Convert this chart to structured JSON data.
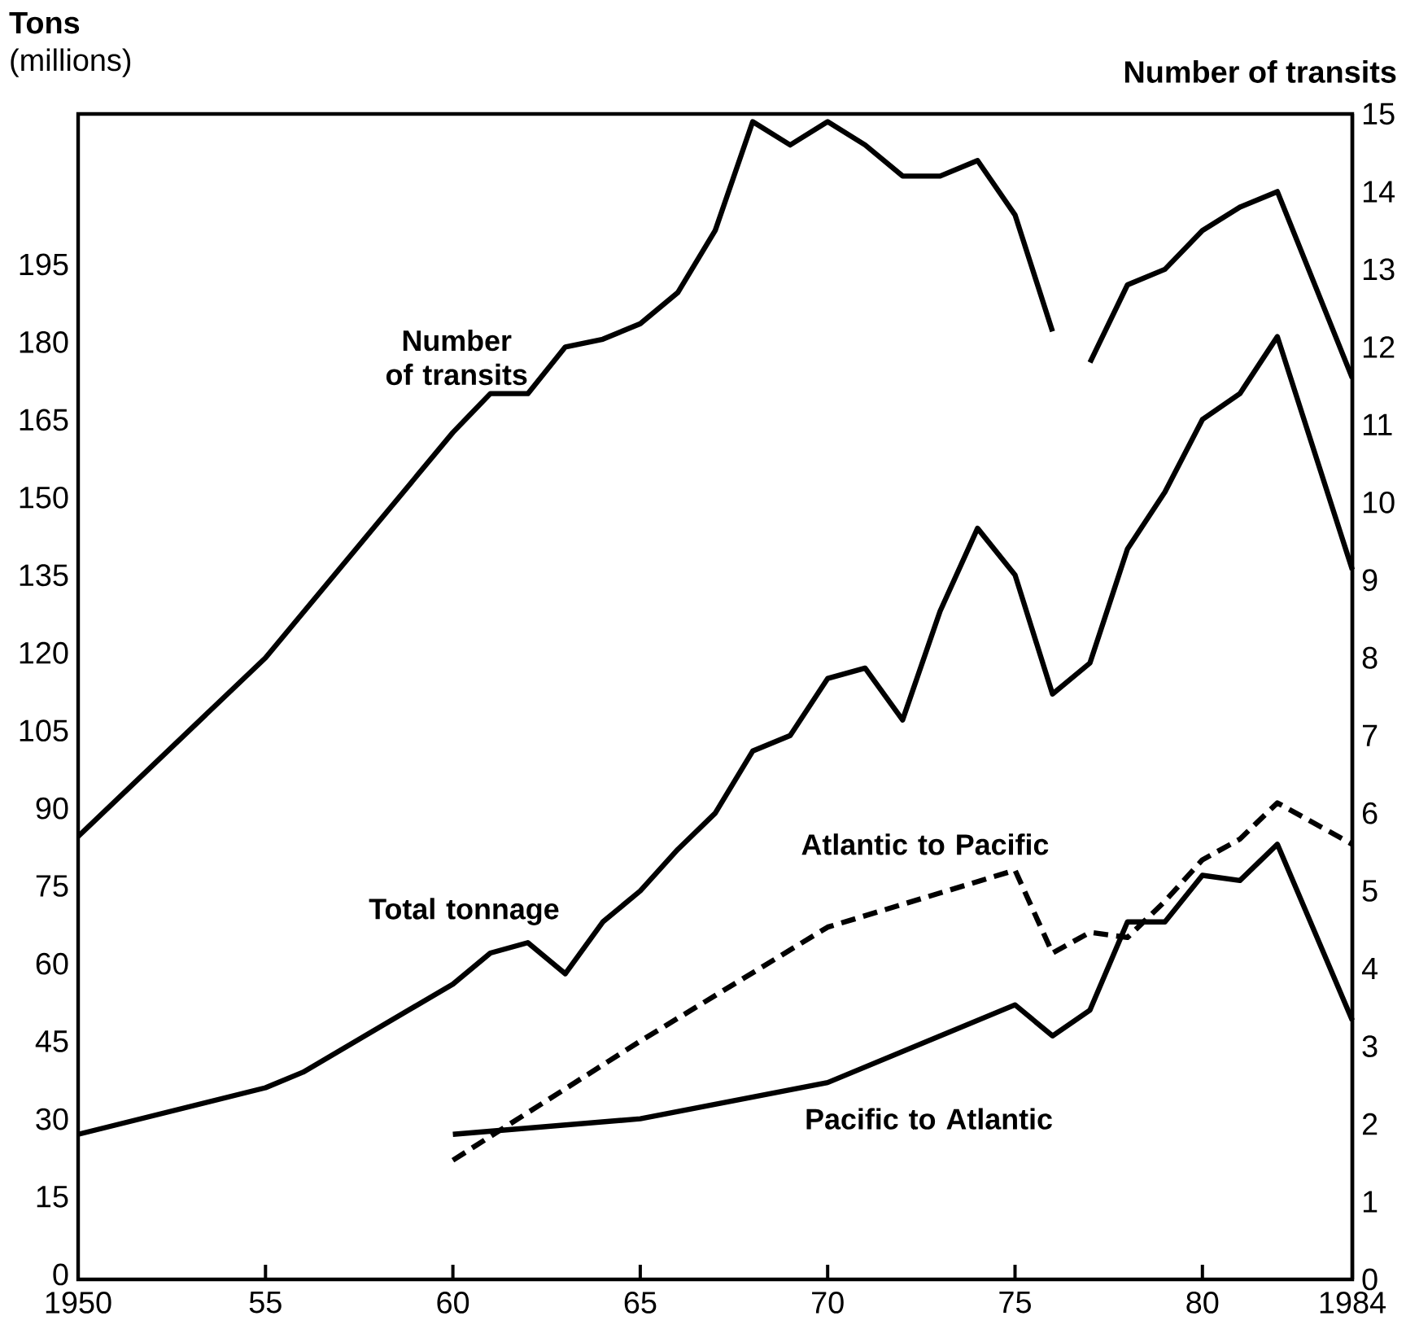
{
  "chart_data": {
    "type": "line",
    "ylabel": "**Tons** (millions)",
    "y2label": "Number of transits",
    "xlim": [
      1950,
      1984
    ],
    "xticks": [
      1950,
      {
        "value": 1955,
        "label": "55"
      },
      {
        "value": 1960,
        "label": "60"
      },
      {
        "value": 1965,
        "label": "65"
      },
      {
        "value": 1970,
        "label": "70"
      },
      {
        "value": 1975,
        "label": "75"
      },
      {
        "value": 1980,
        "label": "80"
      },
      1984
    ],
    "ylim": [
      0,
      225
    ],
    "yticks": [
      0,
      15,
      30,
      45,
      60,
      75,
      90,
      105,
      120,
      135,
      150,
      165,
      180,
      195
    ],
    "y2lim": [
      0,
      15
    ],
    "y2ticks": [
      0,
      1,
      2,
      3,
      4,
      5,
      6,
      7,
      8,
      9,
      10,
      11,
      12,
      13,
      14,
      15
    ],
    "legend": false,
    "grid": false,
    "marker": "none",
    "line_style": "solid",
    "series": [
      {
        "name": "Number of transits",
        "axis": "y2",
        "color": "#000000",
        "x": [
          1950,
          1955,
          1960,
          1961,
          1962,
          1963,
          1964,
          1965,
          1966,
          1967,
          1968,
          1969,
          1970,
          1971,
          1972,
          1973,
          1974,
          1975,
          1976,
          1976.5,
          1977,
          1978,
          1979,
          1980,
          1981,
          1982,
          1984
        ],
        "values": [
          5.7,
          8.0,
          10.9,
          11.4,
          11.4,
          12.0,
          12.1,
          12.3,
          12.7,
          13.5,
          14.9,
          14.6,
          14.9,
          14.6,
          14.2,
          14.2,
          14.4,
          13.7,
          12.2,
          null,
          11.8,
          12.8,
          13.0,
          13.5,
          13.8,
          14.0,
          11.6
        ]
      },
      {
        "name": "Total tonnage",
        "color": "#000000",
        "x": [
          1950,
          1955,
          1956,
          1960,
          1961,
          1962,
          1963,
          1964,
          1965,
          1966,
          1967,
          1968,
          1969,
          1970,
          1971,
          1972,
          1973,
          1974,
          1975,
          1976,
          1977,
          1978,
          1979,
          1980,
          1981,
          1982,
          1984
        ],
        "values": [
          28,
          37,
          40,
          57,
          63,
          65,
          59,
          69,
          75,
          83,
          90,
          102,
          105,
          116,
          118,
          108,
          129,
          145,
          136,
          113,
          119,
          141,
          152,
          166,
          171,
          182,
          137
        ]
      },
      {
        "name": "Atlantic to Pacific",
        "line_style": "dashed",
        "color": "#000000",
        "x": [
          1960,
          1965,
          1970,
          1975,
          1976,
          1977,
          1978,
          1979,
          1980,
          1981,
          1982,
          1984
        ],
        "values": [
          23,
          46,
          68,
          79,
          63,
          67,
          66,
          73,
          81,
          85,
          92,
          84
        ]
      },
      {
        "name": "Pacific to Atlantic",
        "color": "#000000",
        "x": [
          1960,
          1965,
          1970,
          1975,
          1976,
          1977,
          1978,
          1979,
          1980,
          1981,
          1982,
          1984
        ],
        "values": [
          28,
          31,
          38,
          53,
          47,
          52,
          69,
          69,
          78,
          77,
          84,
          50
        ]
      }
    ]
  }
}
